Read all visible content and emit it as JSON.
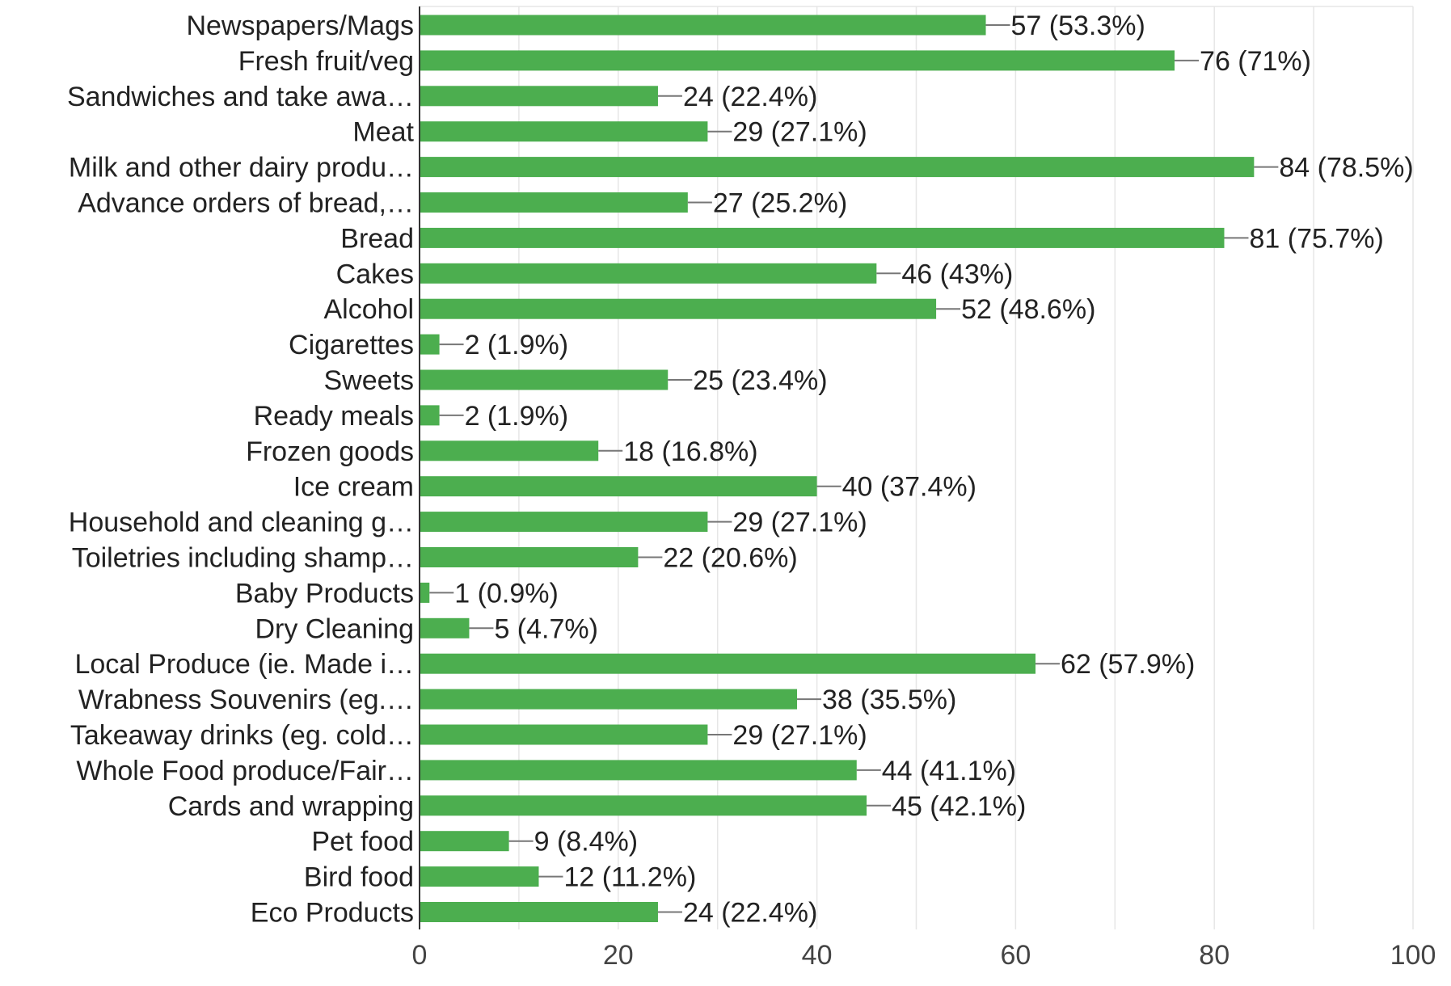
{
  "chart_data": {
    "type": "bar",
    "orientation": "horizontal",
    "title": "",
    "xlabel": "",
    "ylabel": "",
    "xlim": [
      0,
      100
    ],
    "x_ticks": [
      0,
      20,
      40,
      60,
      80,
      100
    ],
    "grid": true,
    "bar_color": "#4cae4f",
    "categories": [
      "Newspapers/Mags",
      "Fresh fruit/veg",
      "Sandwiches and take awa…",
      "Meat",
      "Milk and other dairy produ…",
      "Advance orders of bread,…",
      "Bread",
      "Cakes",
      "Alcohol",
      "Cigarettes",
      "Sweets",
      "Ready meals",
      "Frozen goods",
      "Ice cream",
      "Household and cleaning g…",
      "Toiletries including shamp…",
      "Baby Products",
      "Dry Cleaning",
      "Local Produce (ie. Made i…",
      "Wrabness Souvenirs (eg.…",
      "Takeaway drinks (eg. cold…",
      "Whole Food produce/Fair…",
      "Cards and wrapping",
      "Pet food",
      "Bird food",
      "Eco Products"
    ],
    "values": [
      57,
      76,
      24,
      29,
      84,
      27,
      81,
      46,
      52,
      2,
      25,
      2,
      18,
      40,
      29,
      22,
      1,
      5,
      62,
      38,
      29,
      44,
      45,
      9,
      12,
      24
    ],
    "value_labels": [
      "57 (53.3%)",
      "76 (71%)",
      "24 (22.4%)",
      "29 (27.1%)",
      "84 (78.5%)",
      "27 (25.2%)",
      "81 (75.7%)",
      "46 (43%)",
      "52 (48.6%)",
      "2 (1.9%)",
      "25 (23.4%)",
      "2 (1.9%)",
      "18 (16.8%)",
      "40 (37.4%)",
      "29 (27.1%)",
      "22 (20.6%)",
      "1 (0.9%)",
      "5 (4.7%)",
      "62 (57.9%)",
      "38 (35.5%)",
      "29 (27.1%)",
      "44 (41.1%)",
      "45 (42.1%)",
      "9 (8.4%)",
      "12 (11.2%)",
      "24 (22.4%)"
    ]
  }
}
